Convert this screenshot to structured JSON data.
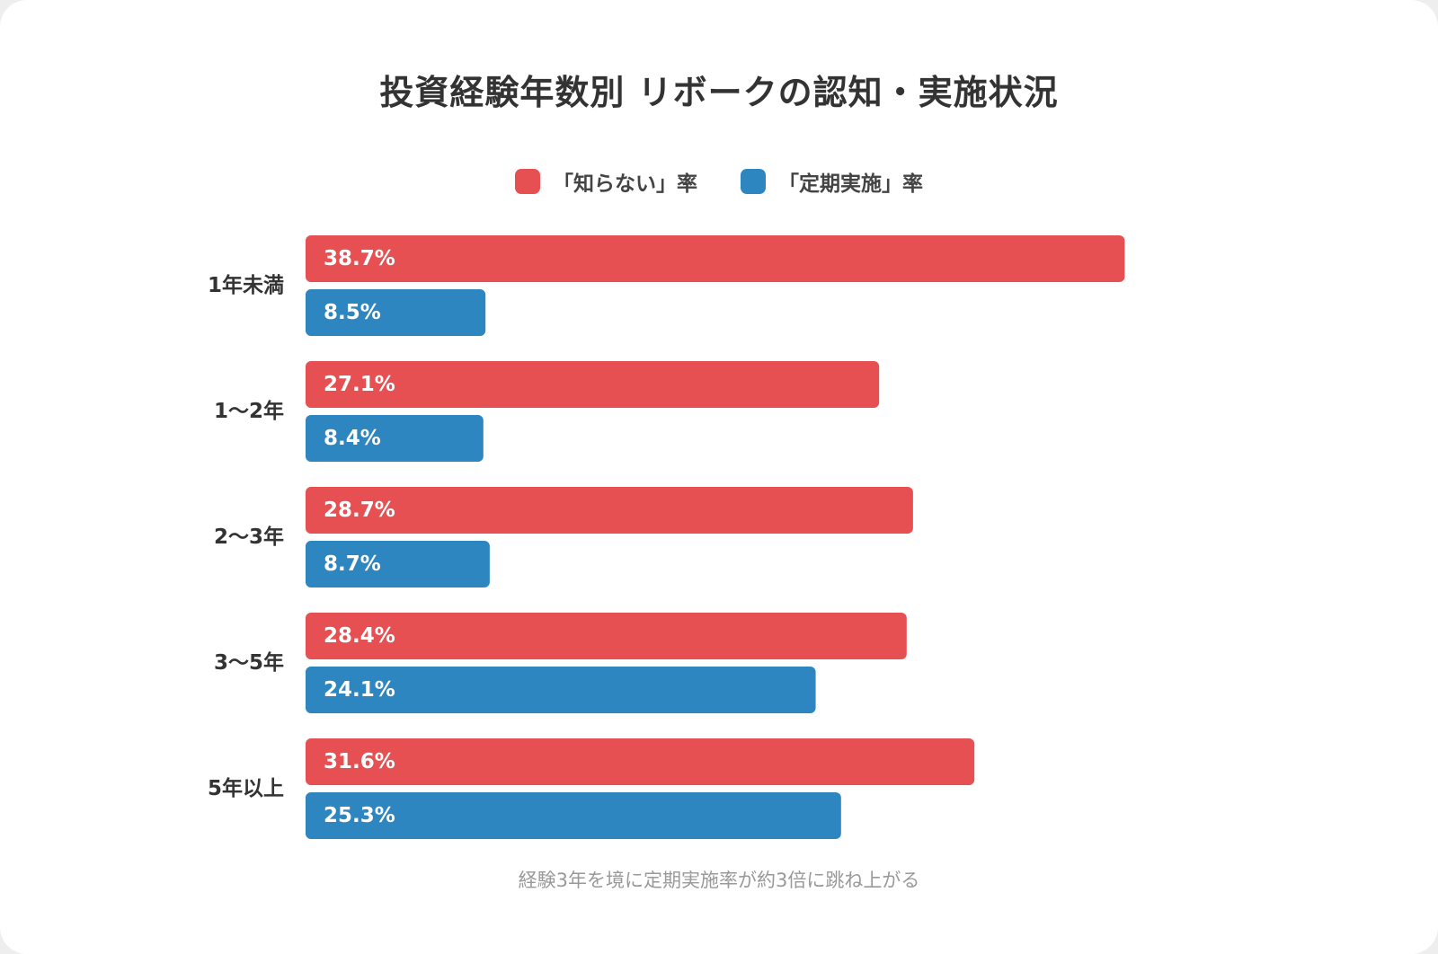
{
  "chart_data": {
    "type": "bar",
    "orientation": "horizontal",
    "title": "投資経験年数別 リボークの認知・実施状況",
    "categories": [
      "1年未満",
      "1〜2年",
      "2〜3年",
      "3〜5年",
      "5年以上"
    ],
    "series": [
      {
        "name": "「知らない」率",
        "color": "#e65052",
        "values": [
          38.7,
          27.1,
          28.7,
          28.4,
          31.6
        ],
        "labels": [
          "38.7%",
          "27.1%",
          "28.7%",
          "28.4%",
          "31.6%"
        ]
      },
      {
        "name": "「定期実施」率",
        "color": "#2e86c1",
        "values": [
          8.5,
          8.4,
          8.7,
          24.1,
          25.3
        ],
        "labels": [
          "8.5%",
          "8.4%",
          "8.7%",
          "24.1%",
          "25.3%"
        ]
      }
    ],
    "legend_position": "top",
    "grid": false,
    "note": "経験3年を境に定期実施率が約3倍に跳ね上がる"
  }
}
